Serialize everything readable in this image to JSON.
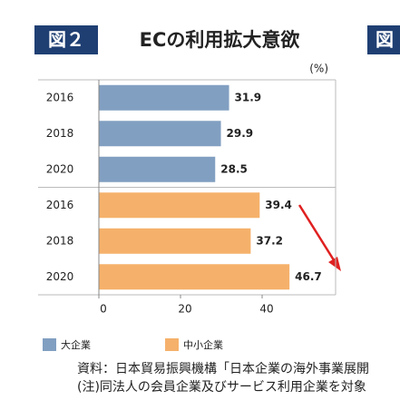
{
  "figure_label": "図２",
  "next_figure_label": "図",
  "chart_data": {
    "type": "bar",
    "orientation": "horizontal",
    "title": "ECの利用拡大意欲",
    "unit": "(%)",
    "categories": [
      "2016",
      "2018",
      "2020"
    ],
    "series": [
      {
        "name": "大企業",
        "color": "#819fc1",
        "values": [
          31.9,
          29.9,
          28.5
        ]
      },
      {
        "name": "中小企業",
        "color": "#f5b16b",
        "values": [
          39.4,
          37.2,
          46.7
        ]
      }
    ],
    "xlim": [
      0,
      58
    ],
    "xticks": [
      0,
      20,
      40
    ]
  },
  "notes": [
    "資料：日本貿易振興機構「日本企業の海外事業展開",
    "(注)同法人の会員企業及びサービス利用企業を対象"
  ]
}
